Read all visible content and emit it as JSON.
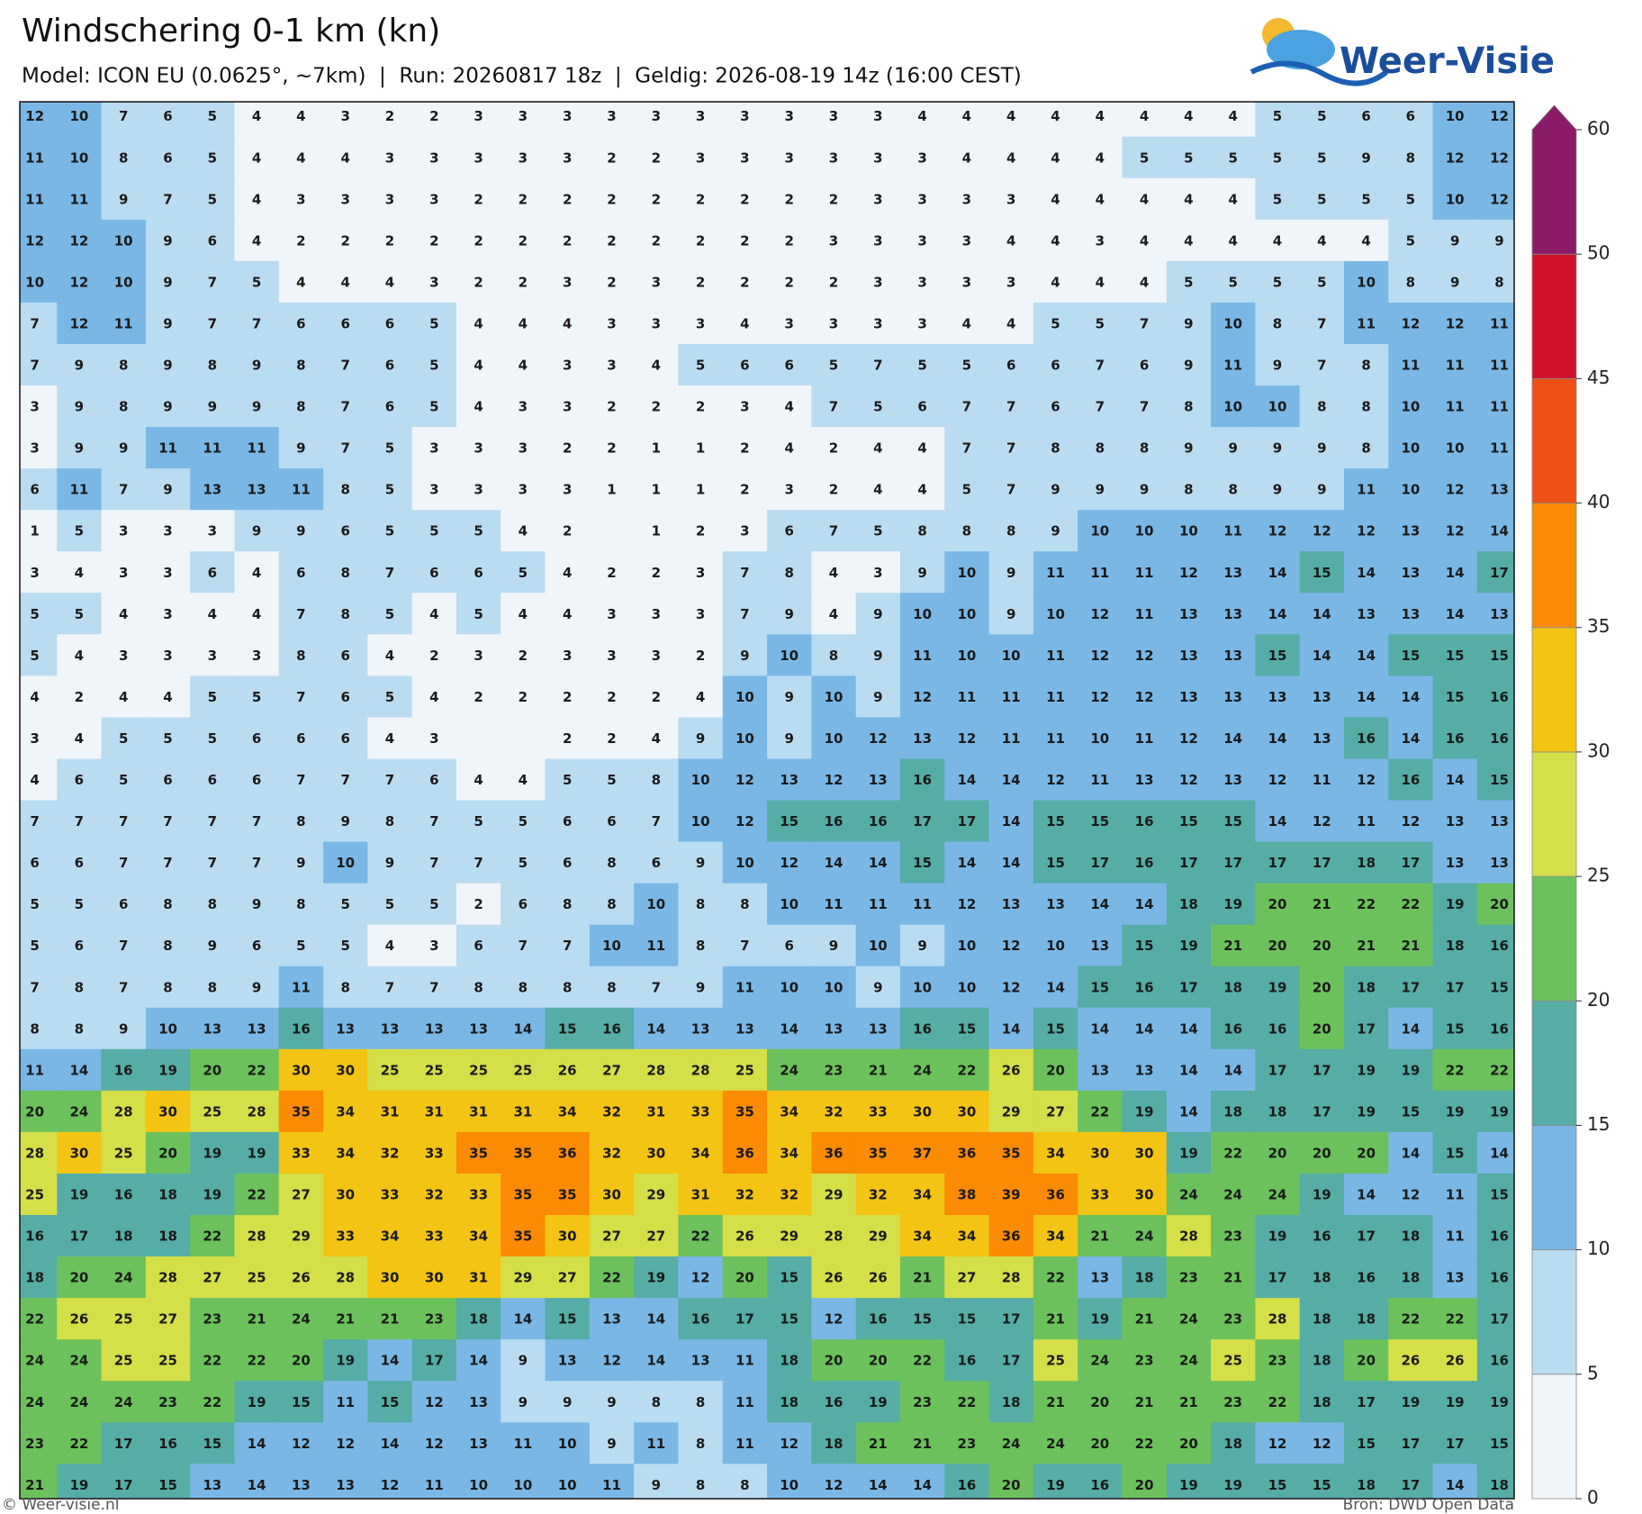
{
  "header": {
    "title": "Windschering 0-1 km (kn)",
    "subtitle": "Model: ICON EU (0.0625°, ~7km)  |  Run: 20260817 18z  |  Geldig: 2026-08-19 14z (16:00 CEST)",
    "logo": "Weer-Visie"
  },
  "map": {
    "values": [
      [
        12,
        10,
        7,
        6,
        5,
        4,
        4,
        3,
        2,
        2,
        3,
        3,
        3,
        3,
        3,
        3,
        3,
        3,
        3,
        3,
        4,
        4,
        4,
        4,
        4,
        4,
        4,
        4,
        5,
        5,
        6,
        6,
        10,
        12
      ],
      [
        11,
        10,
        8,
        6,
        5,
        4,
        4,
        4,
        3,
        3,
        3,
        3,
        3,
        2,
        2,
        3,
        3,
        3,
        3,
        3,
        3,
        4,
        4,
        4,
        4,
        5,
        5,
        5,
        5,
        5,
        9,
        8,
        12,
        12
      ],
      [
        11,
        11,
        9,
        7,
        5,
        4,
        3,
        3,
        3,
        3,
        2,
        2,
        2,
        2,
        2,
        2,
        2,
        2,
        2,
        3,
        3,
        3,
        3,
        4,
        4,
        4,
        4,
        4,
        5,
        5,
        5,
        5,
        10,
        12
      ],
      [
        12,
        12,
        10,
        9,
        6,
        4,
        2,
        2,
        2,
        2,
        2,
        2,
        2,
        2,
        2,
        2,
        2,
        2,
        3,
        3,
        3,
        3,
        4,
        4,
        3,
        4,
        4,
        4,
        4,
        4,
        4,
        5,
        9,
        9
      ],
      [
        10,
        12,
        10,
        9,
        7,
        5,
        4,
        4,
        4,
        3,
        2,
        2,
        3,
        2,
        3,
        2,
        2,
        2,
        2,
        3,
        3,
        3,
        3,
        4,
        4,
        4,
        5,
        5,
        5,
        5,
        10,
        8,
        9,
        8
      ],
      [
        7,
        12,
        11,
        9,
        7,
        7,
        6,
        6,
        6,
        5,
        4,
        4,
        4,
        3,
        3,
        3,
        4,
        3,
        3,
        3,
        3,
        4,
        4,
        5,
        5,
        7,
        9,
        10,
        8,
        7,
        11,
        12,
        12,
        11
      ],
      [
        7,
        9,
        8,
        9,
        8,
        9,
        8,
        7,
        6,
        5,
        4,
        4,
        3,
        3,
        4,
        5,
        6,
        6,
        5,
        7,
        5,
        5,
        6,
        6,
        7,
        6,
        9,
        11,
        9,
        7,
        8,
        11,
        11,
        11
      ],
      [
        3,
        9,
        8,
        9,
        9,
        9,
        8,
        7,
        6,
        5,
        4,
        3,
        3,
        2,
        2,
        2,
        3,
        4,
        7,
        5,
        6,
        7,
        7,
        6,
        7,
        7,
        8,
        10,
        10,
        8,
        8,
        10,
        11,
        11
      ],
      [
        3,
        9,
        9,
        11,
        11,
        11,
        9,
        7,
        5,
        3,
        3,
        3,
        2,
        2,
        1,
        1,
        2,
        4,
        2,
        4,
        4,
        7,
        7,
        8,
        8,
        8,
        9,
        9,
        9,
        9,
        8,
        10,
        10,
        11
      ],
      [
        6,
        11,
        7,
        9,
        13,
        13,
        11,
        8,
        5,
        3,
        3,
        3,
        3,
        1,
        1,
        1,
        2,
        3,
        2,
        4,
        4,
        5,
        7,
        9,
        9,
        9,
        8,
        8,
        9,
        9,
        11,
        10,
        12,
        13
      ],
      [
        1,
        5,
        3,
        3,
        3,
        9,
        9,
        6,
        5,
        5,
        5,
        4,
        2,
        null,
        1,
        2,
        3,
        6,
        7,
        5,
        8,
        8,
        8,
        9,
        10,
        10,
        10,
        11,
        12,
        12,
        12,
        13,
        12,
        14
      ],
      [
        3,
        4,
        3,
        3,
        6,
        4,
        6,
        8,
        7,
        6,
        6,
        5,
        4,
        2,
        2,
        3,
        7,
        8,
        4,
        3,
        9,
        10,
        9,
        11,
        11,
        11,
        12,
        13,
        14,
        15,
        14,
        13,
        14,
        17
      ],
      [
        5,
        5,
        4,
        3,
        4,
        4,
        7,
        8,
        5,
        4,
        5,
        4,
        4,
        3,
        3,
        3,
        7,
        9,
        4,
        9,
        10,
        10,
        9,
        10,
        12,
        11,
        13,
        13,
        14,
        14,
        13,
        13,
        14,
        13
      ],
      [
        5,
        4,
        3,
        3,
        3,
        3,
        8,
        6,
        4,
        2,
        3,
        2,
        3,
        3,
        3,
        2,
        9,
        10,
        8,
        9,
        11,
        10,
        10,
        11,
        12,
        12,
        13,
        13,
        15,
        14,
        14,
        15,
        15,
        15
      ],
      [
        4,
        2,
        4,
        4,
        5,
        5,
        7,
        6,
        5,
        4,
        2,
        2,
        2,
        2,
        2,
        4,
        10,
        9,
        10,
        9,
        12,
        11,
        11,
        11,
        12,
        12,
        13,
        13,
        13,
        13,
        14,
        14,
        15,
        16
      ],
      [
        3,
        4,
        5,
        5,
        5,
        6,
        6,
        6,
        4,
        3,
        null,
        null,
        2,
        2,
        4,
        9,
        10,
        9,
        10,
        12,
        13,
        12,
        11,
        11,
        10,
        11,
        12,
        14,
        14,
        13,
        16,
        14,
        16,
        16
      ],
      [
        4,
        6,
        5,
        6,
        6,
        6,
        7,
        7,
        7,
        6,
        4,
        4,
        5,
        5,
        8,
        10,
        12,
        13,
        12,
        13,
        16,
        14,
        14,
        12,
        11,
        13,
        12,
        13,
        12,
        11,
        12,
        16,
        14,
        15
      ],
      [
        7,
        7,
        7,
        7,
        7,
        7,
        8,
        9,
        8,
        7,
        5,
        5,
        6,
        6,
        7,
        10,
        12,
        15,
        16,
        16,
        17,
        17,
        14,
        15,
        15,
        16,
        15,
        15,
        14,
        12,
        11,
        12,
        13,
        13
      ],
      [
        6,
        6,
        7,
        7,
        7,
        7,
        9,
        10,
        9,
        7,
        7,
        5,
        6,
        8,
        6,
        9,
        10,
        12,
        14,
        14,
        15,
        14,
        14,
        15,
        17,
        16,
        17,
        17,
        17,
        17,
        18,
        17,
        13,
        13
      ],
      [
        5,
        5,
        6,
        8,
        8,
        9,
        8,
        5,
        5,
        5,
        2,
        6,
        8,
        8,
        10,
        8,
        8,
        10,
        11,
        11,
        11,
        12,
        13,
        13,
        14,
        14,
        18,
        19,
        20,
        21,
        22,
        22,
        19,
        20
      ],
      [
        5,
        6,
        7,
        8,
        9,
        6,
        5,
        5,
        4,
        3,
        6,
        7,
        7,
        10,
        11,
        8,
        7,
        6,
        9,
        10,
        9,
        10,
        12,
        10,
        13,
        15,
        19,
        21,
        20,
        20,
        21,
        21,
        18,
        16
      ],
      [
        7,
        8,
        7,
        8,
        8,
        9,
        11,
        8,
        7,
        7,
        8,
        8,
        8,
        8,
        7,
        9,
        11,
        10,
        10,
        9,
        10,
        10,
        12,
        14,
        15,
        16,
        17,
        18,
        19,
        20,
        18,
        17,
        17,
        15
      ],
      [
        8,
        8,
        9,
        10,
        13,
        13,
        16,
        13,
        13,
        13,
        13,
        14,
        15,
        16,
        14,
        13,
        13,
        14,
        13,
        13,
        16,
        15,
        14,
        15,
        14,
        14,
        14,
        16,
        16,
        20,
        17,
        14,
        15,
        16
      ],
      [
        11,
        14,
        16,
        19,
        20,
        22,
        30,
        30,
        25,
        25,
        25,
        25,
        26,
        27,
        28,
        28,
        25,
        24,
        23,
        21,
        24,
        22,
        26,
        20,
        13,
        13,
        14,
        14,
        17,
        17,
        19,
        19,
        22,
        22
      ],
      [
        20,
        24,
        28,
        30,
        25,
        28,
        35,
        34,
        31,
        31,
        31,
        31,
        34,
        32,
        31,
        33,
        35,
        34,
        32,
        33,
        30,
        30,
        29,
        27,
        22,
        19,
        14,
        18,
        18,
        17,
        19,
        15,
        19,
        19
      ],
      [
        28,
        30,
        25,
        20,
        19,
        19,
        33,
        34,
        32,
        33,
        35,
        35,
        36,
        32,
        30,
        34,
        36,
        34,
        36,
        35,
        37,
        36,
        35,
        34,
        30,
        30,
        19,
        22,
        20,
        20,
        20,
        14,
        15,
        14
      ],
      [
        25,
        19,
        16,
        18,
        19,
        22,
        27,
        30,
        33,
        32,
        33,
        35,
        35,
        30,
        29,
        31,
        32,
        32,
        29,
        32,
        34,
        38,
        39,
        36,
        33,
        30,
        24,
        24,
        24,
        19,
        14,
        12,
        11,
        15
      ],
      [
        16,
        17,
        18,
        18,
        22,
        28,
        29,
        33,
        34,
        33,
        34,
        35,
        30,
        27,
        27,
        22,
        26,
        29,
        28,
        29,
        34,
        34,
        36,
        34,
        21,
        24,
        28,
        23,
        19,
        16,
        17,
        18,
        11,
        16
      ],
      [
        18,
        20,
        24,
        28,
        27,
        25,
        26,
        28,
        30,
        30,
        31,
        29,
        27,
        22,
        19,
        12,
        20,
        15,
        26,
        26,
        21,
        27,
        28,
        22,
        13,
        18,
        23,
        21,
        17,
        18,
        16,
        18,
        13,
        16
      ],
      [
        22,
        26,
        25,
        27,
        23,
        21,
        24,
        21,
        21,
        23,
        18,
        14,
        15,
        13,
        14,
        16,
        17,
        15,
        12,
        16,
        15,
        15,
        17,
        21,
        19,
        21,
        24,
        23,
        28,
        18,
        18,
        22,
        22,
        17
      ],
      [
        24,
        24,
        25,
        25,
        22,
        22,
        20,
        19,
        14,
        17,
        14,
        9,
        13,
        12,
        14,
        13,
        11,
        18,
        20,
        20,
        22,
        16,
        17,
        25,
        24,
        23,
        24,
        25,
        23,
        18,
        20,
        26,
        26,
        16
      ],
      [
        24,
        24,
        24,
        23,
        22,
        19,
        15,
        11,
        15,
        12,
        13,
        9,
        9,
        9,
        8,
        8,
        11,
        18,
        16,
        19,
        23,
        22,
        18,
        21,
        20,
        21,
        21,
        23,
        22,
        18,
        17,
        19,
        19,
        19
      ],
      [
        23,
        22,
        17,
        16,
        15,
        14,
        12,
        12,
        14,
        12,
        13,
        11,
        10,
        9,
        11,
        8,
        11,
        12,
        18,
        21,
        21,
        23,
        24,
        24,
        20,
        22,
        20,
        18,
        12,
        12,
        15,
        17,
        17,
        15
      ],
      [
        21,
        19,
        17,
        15,
        13,
        14,
        13,
        13,
        12,
        11,
        10,
        10,
        10,
        11,
        9,
        8,
        8,
        10,
        12,
        14,
        14,
        16,
        20,
        19,
        16,
        20,
        19,
        19,
        15,
        15,
        18,
        17,
        14,
        18
      ]
    ]
  },
  "colorbar": {
    "ticks": [
      0,
      5,
      10,
      15,
      20,
      25,
      30,
      35,
      40,
      45,
      50,
      60
    ],
    "colors": [
      "#f0f5fa",
      "#b9dcf1",
      "#7ab7e5",
      "#55ada6",
      "#6cc15c",
      "#d5df48",
      "#f3c413",
      "#fb8b03",
      "#ef5114",
      "#d2122c",
      "#8b1a69"
    ]
  },
  "footer": {
    "left": "© Weer-visie.nl",
    "right": "Bron: DWD Open Data"
  }
}
